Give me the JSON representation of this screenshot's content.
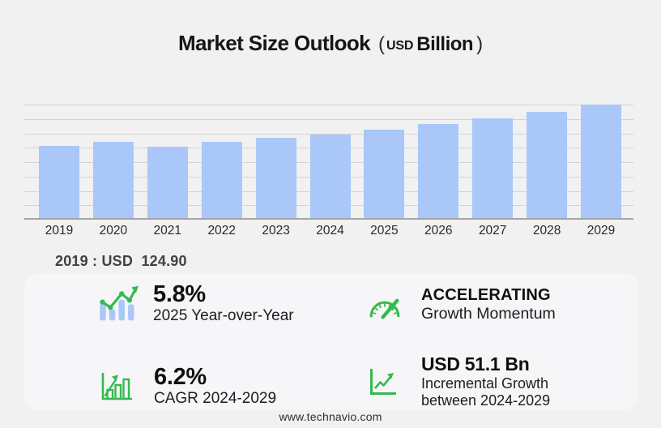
{
  "title": {
    "main": "Market Size Outlook",
    "paren_open": "(",
    "unit_prefix": "USD",
    "unit": "Billion",
    "paren_close": ")"
  },
  "chart_data": {
    "type": "bar",
    "title": "Market Size Outlook (USD Billion)",
    "categories": [
      "2019",
      "2020",
      "2021",
      "2022",
      "2023",
      "2024",
      "2025",
      "2026",
      "2027",
      "2028",
      "2029"
    ],
    "values": [
      124.9,
      133.0,
      124.1,
      132.4,
      139.5,
      145.7,
      154.1,
      164.0,
      173.6,
      185.0,
      196.8
    ],
    "unit": "USD Billion",
    "xlabel": "",
    "ylabel": "",
    "ylim": [
      0,
      200
    ],
    "gridline_step": 25,
    "grid": true,
    "legend": false,
    "bar_color": "#a9c7f9"
  },
  "annotation": {
    "label": "2019 : USD  124.90"
  },
  "stats": [
    {
      "icon": "trend-line-chart-icon",
      "value": "5.8%",
      "label": "2025 Year-over-Year"
    },
    {
      "icon": "speedometer-icon",
      "value": "ACCELERATING",
      "label": "Growth Momentum"
    },
    {
      "icon": "growth-bars-icon",
      "value": "6.2%",
      "label": "CAGR 2024-2029"
    },
    {
      "icon": "incremental-growth-icon",
      "value": "USD 51.1 Bn",
      "label": "Incremental Growth between 2024-2029"
    }
  ],
  "footer": {
    "website": "www.technavio.com"
  },
  "colors": {
    "background": "#f1f1f2",
    "panel": "#f6f6f8",
    "bar_blue": "#a9c7f9",
    "green": "#34ba4e",
    "gridline": "#d3d3d5",
    "axis": "#a5a5a7",
    "title_text": "#161616",
    "annotation_text": "#414143"
  }
}
